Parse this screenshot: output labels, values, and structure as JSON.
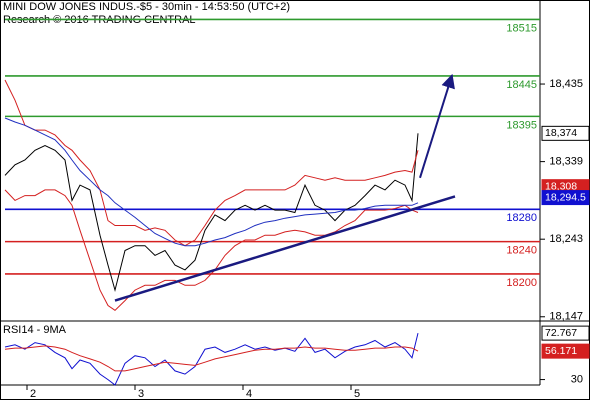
{
  "chart_data": [
    {
      "type": "line",
      "title": "MINI DOW JONES INDUS.-$5 - 30min - 14:53:50 (UTC+2)",
      "subtitle": "Research © 2016 TRADING CENTRAL",
      "x": [
        1.796,
        1.889,
        1.981,
        2.074,
        2.167,
        2.259,
        2.352,
        2.417,
        2.491,
        2.583,
        2.676,
        2.75,
        2.815,
        2.907,
        3.0,
        3.093,
        3.185,
        3.278,
        3.37,
        3.463,
        3.556,
        3.648,
        3.741,
        3.833,
        3.926,
        4.019,
        4.111,
        4.204,
        4.296,
        4.389,
        4.481,
        4.574,
        4.667,
        4.759,
        4.852,
        4.944,
        5.037,
        5.13,
        5.222,
        5.315,
        5.407,
        5.5,
        5.565,
        5.62
      ],
      "series": [
        {
          "color": "#000000",
          "values": [
            18322,
            18335,
            18341,
            18353,
            18359,
            18353,
            18341,
            18291,
            18310,
            18304,
            18248,
            18211,
            18180,
            18229,
            18235,
            18235,
            18223,
            18229,
            18211,
            18205,
            18217,
            18254,
            18273,
            18266,
            18279,
            18285,
            18279,
            18285,
            18279,
            18279,
            18276,
            18310,
            18285,
            18279,
            18266,
            18279,
            18285,
            18297,
            18310,
            18304,
            18316,
            18310,
            18291,
            18374
          ]
        },
        {
          "color": "#d42020",
          "values": [
            18440,
            18415,
            18384,
            18378,
            18378,
            18372,
            18359,
            18353,
            18341,
            18328,
            18304,
            18266,
            18260,
            18260,
            18260,
            18254,
            18257,
            18254,
            18242,
            18235,
            18242,
            18260,
            18279,
            18291,
            18297,
            18304,
            18304,
            18304,
            18304,
            18304,
            18310,
            18322,
            18319,
            18316,
            18319,
            18316,
            18316,
            18316,
            18319,
            18322,
            18326,
            18328,
            18326,
            18353
          ]
        },
        {
          "color": "#d42020",
          "values": [
            18304,
            18291,
            18297,
            18297,
            18304,
            18304,
            18297,
            18285,
            18254,
            18217,
            18180,
            18161,
            18155,
            18167,
            18180,
            18186,
            18186,
            18192,
            18192,
            18186,
            18186,
            18192,
            18205,
            18223,
            18235,
            18242,
            18242,
            18248,
            18248,
            18252,
            18254,
            18252,
            18248,
            18248,
            18252,
            18260,
            18266,
            18279,
            18279,
            18279,
            18281,
            18285,
            18279,
            18276
          ]
        },
        {
          "color": "#2030c0",
          "values": [
            18393,
            18388,
            18384,
            18378,
            18372,
            18366,
            18353,
            18341,
            18328,
            18316,
            18304,
            18297,
            18288,
            18279,
            18270,
            18260,
            18250,
            18244,
            18238,
            18235,
            18235,
            18238,
            18242,
            18245,
            18250,
            18254,
            18260,
            18264,
            18266,
            18269,
            18271,
            18273,
            18274,
            18275,
            18276,
            18279,
            18279,
            18281,
            18284,
            18285,
            18285,
            18285,
            18285,
            18288
          ]
        }
      ],
      "levels": [
        {
          "value": 18515,
          "color": "#2e9a2e"
        },
        {
          "value": 18445,
          "color": "#2e9a2e"
        },
        {
          "value": 18395,
          "color": "#2e9a2e"
        },
        {
          "value": 18280,
          "color": "#1010d0"
        },
        {
          "value": 18240,
          "color": "#d42020"
        },
        {
          "value": 18200,
          "color": "#d42020"
        }
      ],
      "trend_line": {
        "color": "#1a1a80",
        "x": [
          2.815,
          5.963
        ],
        "values": [
          18167,
          18296
        ]
      },
      "arrow": {
        "color": "#1a1a80",
        "x": [
          5.639,
          5.935
        ],
        "values": [
          18319,
          18446
        ]
      },
      "markers": [
        {
          "value": 18374,
          "label": "18,374",
          "color": "#ffffff"
        },
        {
          "value": 18308,
          "label": "18,308",
          "color": "#d42020"
        },
        {
          "value": 18294.5,
          "label": "18,294.5",
          "color": "#1010d0"
        }
      ],
      "xlim": [
        1.75,
        6.75
      ],
      "xticks": [
        2,
        3,
        4,
        5
      ],
      "ylim": [
        18143,
        18539
      ],
      "yticks": [
        {
          "value": 18435,
          "label": "18,435"
        },
        {
          "value": 18339,
          "label": "18,339"
        },
        {
          "value": 18243,
          "label": "18,243"
        },
        {
          "value": 18147,
          "label": "18,147"
        }
      ]
    },
    {
      "type": "line",
      "title": "RSI14 - 9MA",
      "x": [
        1.796,
        1.889,
        1.981,
        2.074,
        2.167,
        2.259,
        2.352,
        2.417,
        2.491,
        2.583,
        2.676,
        2.75,
        2.815,
        2.907,
        3.0,
        3.093,
        3.185,
        3.278,
        3.37,
        3.463,
        3.556,
        3.648,
        3.741,
        3.833,
        3.926,
        4.019,
        4.111,
        4.204,
        4.296,
        4.389,
        4.481,
        4.574,
        4.667,
        4.759,
        4.852,
        4.944,
        5.037,
        5.13,
        5.222,
        5.315,
        5.407,
        5.5,
        5.565,
        5.62
      ],
      "series": [
        {
          "color": "#1010d0",
          "values": [
            60,
            62,
            58,
            64,
            62,
            55,
            50,
            40,
            48,
            45,
            35,
            30,
            25,
            45,
            52,
            50,
            42,
            48,
            38,
            35,
            42,
            58,
            60,
            55,
            58,
            62,
            58,
            60,
            57,
            59,
            56,
            68,
            55,
            58,
            50,
            56,
            60,
            62,
            66,
            60,
            64,
            58,
            50,
            72.767
          ]
        },
        {
          "color": "#d42020",
          "values": [
            58,
            59,
            59,
            60,
            61,
            60,
            58,
            55,
            52,
            49,
            46,
            42,
            38,
            38,
            40,
            42,
            44,
            46,
            45,
            44,
            43,
            46,
            49,
            51,
            53,
            55,
            57,
            58,
            58,
            59,
            59,
            60,
            59,
            59,
            58,
            57,
            57,
            58,
            59,
            59,
            60,
            60,
            59,
            56.171
          ]
        }
      ],
      "markers": [
        {
          "value": 72.767,
          "label": "72.767",
          "color": "#ffffff"
        },
        {
          "value": 56.171,
          "label": "56.171",
          "color": "#d42020"
        }
      ],
      "xlim": [
        1.75,
        6.75
      ],
      "ylim": [
        25,
        83
      ],
      "yticks": [
        30
      ]
    }
  ]
}
